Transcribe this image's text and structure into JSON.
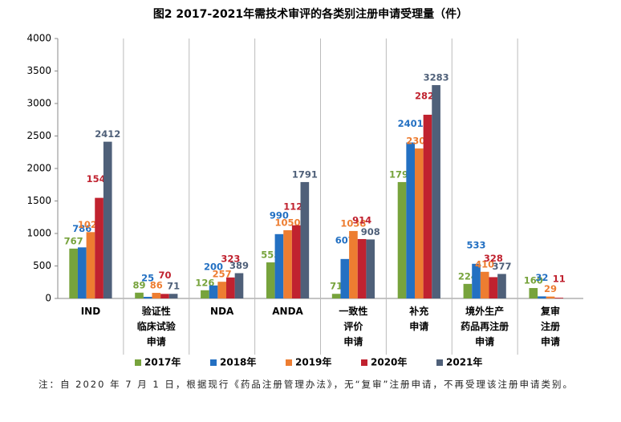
{
  "chart_data": {
    "type": "bar",
    "title": "图2 2017-2021年需技术审评的各类别注册申请受理量（件）",
    "categories": [
      "IND",
      "验证性\n临床试验\n申请",
      "NDA",
      "ANDA",
      "一致性\n评价\n申请",
      "补充\n申请",
      "境外生产\n药品再注册\n申请",
      "复审\n注册\n申请"
    ],
    "series": [
      {
        "name": "2017年",
        "color": "#77a33c",
        "values": [
          767,
          89,
          126,
          555,
          71,
          1791,
          224,
          160
        ]
      },
      {
        "name": "2018年",
        "color": "#2370c2",
        "values": [
          786,
          25,
          200,
          990,
          607,
          2401,
          533,
          32
        ]
      },
      {
        "name": "2019年",
        "color": "#ed7d31",
        "values": [
          1021,
          86,
          257,
          1050,
          1038,
          2308,
          410,
          29
        ]
      },
      {
        "name": "2020年",
        "color": "#c0222f",
        "values": [
          1548,
          70,
          323,
          1126,
          914,
          2827,
          328,
          11
        ]
      },
      {
        "name": "2021年",
        "color": "#4f6079",
        "values": [
          2412,
          71,
          389,
          1791,
          908,
          3283,
          377,
          null
        ]
      }
    ],
    "ylim": [
      0,
      4000
    ],
    "yticks": [
      0,
      500,
      1000,
      1500,
      2000,
      2500,
      3000,
      3500,
      4000
    ],
    "note": "注：自 2020 年 7 月 1 日，根据现行《药品注册管理办法》，无“复审”注册申请，不再受理该注册申请类别。"
  }
}
